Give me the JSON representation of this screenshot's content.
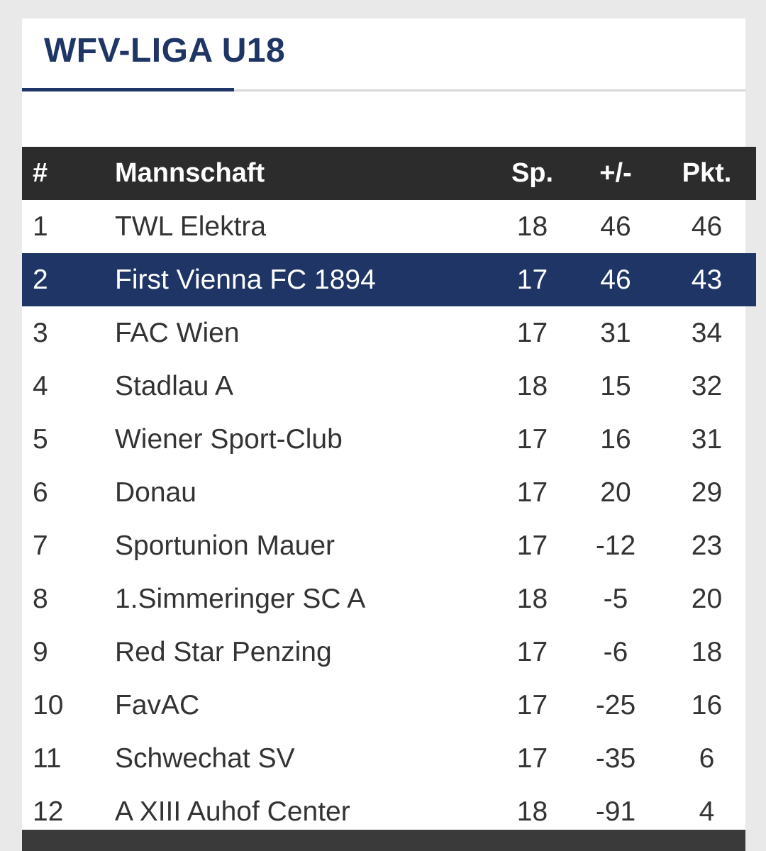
{
  "league": {
    "title": "WFV-LIGA U18"
  },
  "colors": {
    "brand_navy": "#1e3566",
    "header_dark": "#2c2c2c",
    "background": "#e9e9e9"
  },
  "table": {
    "headers": {
      "rank": "#",
      "team": "Mannschaft",
      "played": "Sp.",
      "diff": "+/-",
      "points": "Pkt."
    },
    "highlighted_rank": "2",
    "rows": [
      {
        "rank": "1",
        "team": "TWL Elektra",
        "played": "18",
        "diff": "46",
        "points": "46"
      },
      {
        "rank": "2",
        "team": "First Vienna FC 1894",
        "played": "17",
        "diff": "46",
        "points": "43"
      },
      {
        "rank": "3",
        "team": "FAC Wien",
        "played": "17",
        "diff": "31",
        "points": "34"
      },
      {
        "rank": "4",
        "team": "Stadlau A",
        "played": "18",
        "diff": "15",
        "points": "32"
      },
      {
        "rank": "5",
        "team": "Wiener Sport-Club",
        "played": "17",
        "diff": "16",
        "points": "31"
      },
      {
        "rank": "6",
        "team": "Donau",
        "played": "17",
        "diff": "20",
        "points": "29"
      },
      {
        "rank": "7",
        "team": "Sportunion Mauer",
        "played": "17",
        "diff": "-12",
        "points": "23"
      },
      {
        "rank": "8",
        "team": "1.Simmeringer SC A",
        "played": "18",
        "diff": "-5",
        "points": "20"
      },
      {
        "rank": "9",
        "team": "Red Star Penzing",
        "played": "17",
        "diff": "-6",
        "points": "18"
      },
      {
        "rank": "10",
        "team": "FavAC",
        "played": "17",
        "diff": "-25",
        "points": "16"
      },
      {
        "rank": "11",
        "team": "Schwechat SV",
        "played": "17",
        "diff": "-35",
        "points": "6"
      },
      {
        "rank": "12",
        "team": "A XIII Auhof Center",
        "played": "18",
        "diff": "-91",
        "points": "4"
      }
    ]
  }
}
